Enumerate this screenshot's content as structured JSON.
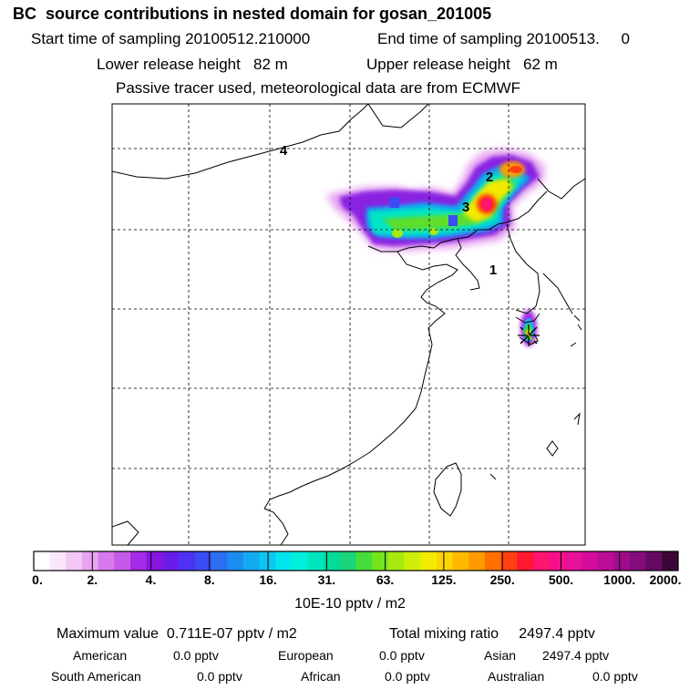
{
  "header": {
    "title": "BC  source contributions in nested domain for gosan_201005",
    "start_label": "Start time of sampling 20100512.210000",
    "end_label": "End time of sampling 20100513.     0",
    "lower_label": "Lower release height   82 m",
    "upper_label": "Upper release height   62 m",
    "tracer_note": "Passive tracer used, meteorological data are from ECMWF"
  },
  "map": {
    "markers": [
      {
        "label": "1"
      },
      {
        "label": "2"
      },
      {
        "label": "3"
      },
      {
        "label": "4"
      }
    ],
    "station_icon": "asterisk-station-icon"
  },
  "colorbar": {
    "colors": [
      "#ffffff",
      "#fbe6fb",
      "#f3c6f5",
      "#e8a4ef",
      "#d779ec",
      "#c55ae8",
      "#a52be6",
      "#8714e0",
      "#6a1ce8",
      "#4c32f2",
      "#3a4cf4",
      "#2d6df0",
      "#1b8df0",
      "#14aaf2",
      "#0cc6f2",
      "#00e4ee",
      "#00f0dc",
      "#00e6bc",
      "#00dc9a",
      "#1ad47a",
      "#46dc3c",
      "#74e41c",
      "#a6ea10",
      "#cfee0a",
      "#f2ea00",
      "#ffd400",
      "#ffba00",
      "#ff9a00",
      "#ff7000",
      "#ff4010",
      "#ff1830",
      "#ff1470",
      "#f8108a",
      "#e81098",
      "#d40c9c",
      "#bc0c98",
      "#a00c8c",
      "#840c7c",
      "#640a60",
      "#3c0638"
    ],
    "ticks": [
      "0.",
      "2.",
      "4.",
      "8.",
      "16.",
      "31.",
      "63.",
      "125.",
      "250.",
      "500.",
      "1000.",
      "2000."
    ],
    "unit": "10E-10 pptv / m2"
  },
  "stats": {
    "max_value": "Maximum value  0.711E-07 pptv / m2",
    "total_mixing": "Total mixing ratio     2497.4 pptv",
    "regions": [
      {
        "name": "American",
        "value": "0.0 pptv"
      },
      {
        "name": "European",
        "value": "0.0 pptv"
      },
      {
        "name": "Asian",
        "value": "2497.4 pptv"
      },
      {
        "name": "South American",
        "value": "0.0 pptv"
      },
      {
        "name": "African",
        "value": "0.0 pptv"
      },
      {
        "name": "Australian",
        "value": "0.0 pptv"
      }
    ]
  }
}
